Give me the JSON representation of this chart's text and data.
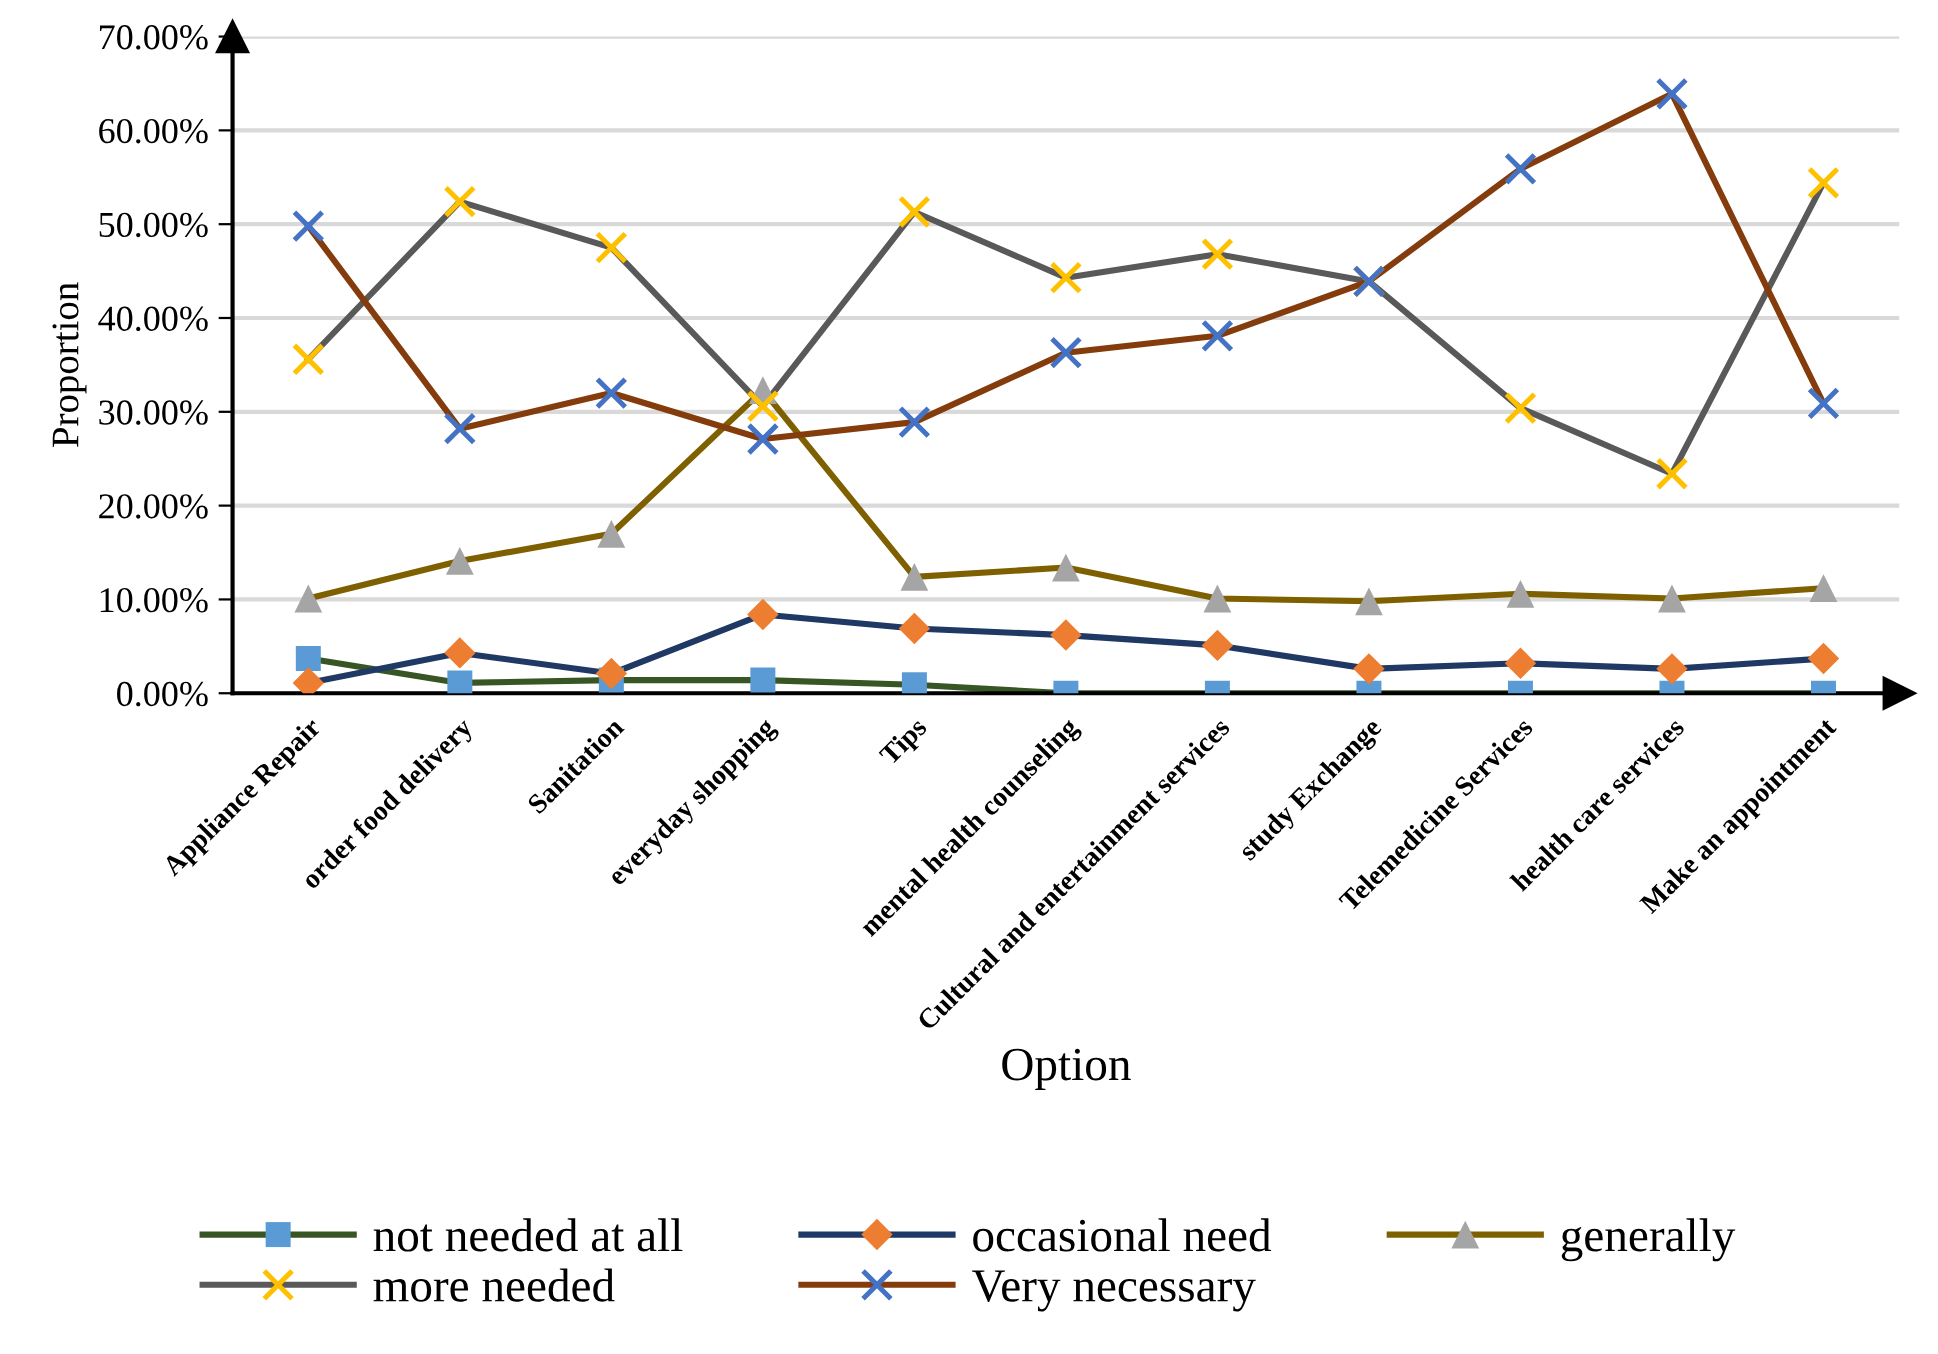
{
  "chart_data": {
    "type": "line",
    "xlabel": "Option",
    "ylabel": "Proportion",
    "categories": [
      "Appliance Repair",
      "order food delivery",
      "Sanitation",
      "everyday shopping",
      "Tips",
      "mental health counseling",
      "Cultural and entertainment services",
      "study Exchange",
      "Telemedicine Services",
      "health care services",
      "Make an appointment"
    ],
    "series": [
      {
        "name": "not needed at all",
        "color": "#375623",
        "marker": "square",
        "colors": [
          "#5b9bd5",
          "#5b9bd5",
          "#5b9bd5",
          "#5b9bd5",
          "#5b9bd5",
          "#5b9bd5",
          "#5b9bd5",
          "#5b9bd5",
          "#5b9bd5",
          "#5b9bd5",
          "#5b9bd5"
        ],
        "values": [
          3.7,
          1.1,
          1.4,
          1.4,
          0.9,
          0,
          0,
          0,
          0,
          0,
          0
        ]
      },
      {
        "name": "occasional need",
        "color": "#1f3864",
        "marker": "diamond",
        "colors": [
          "#ed7d31",
          "#ed7d31",
          "#ed7d31",
          "#ed7d31",
          "#ed7d31",
          "#ed7d31",
          "#ed7d31",
          "#ed7d31",
          "#ed7d31",
          "#ed7d31",
          "#ed7d31"
        ],
        "values": [
          1.1,
          4.3,
          2.1,
          8.4,
          6.9,
          6.2,
          5.1,
          2.6,
          3.2,
          2.6,
          3.7
        ]
      },
      {
        "name": "generally",
        "color": "#7f6000",
        "marker": "triangle",
        "colors": [
          "#a5a5a5",
          "#a5a5a5",
          "#a5a5a5",
          "#a5a5a5",
          "#a5a5a5",
          "#a5a5a5",
          "#a5a5a5",
          "#a5a5a5",
          "#a5a5a5",
          "#a5a5a5",
          "#a5a5a5"
        ],
        "values": [
          10.1,
          14.1,
          17.0,
          32.3,
          12.4,
          13.4,
          10.1,
          9.8,
          10.6,
          10.1,
          11.2
        ]
      },
      {
        "name": "more needed",
        "color": "#595959",
        "marker": "cross",
        "colors": [
          "#ffc000",
          "#ffc000",
          "#ffc000",
          "#ffc000",
          "#ffc000",
          "#ffc000",
          "#ffc000",
          "#ffc000",
          "#ffc000",
          "#ffc000",
          "#ffc000"
        ],
        "values": [
          35.6,
          52.4,
          47.5,
          30.6,
          51.3,
          44.3,
          46.8,
          43.9,
          30.4,
          23.4,
          54.4
        ]
      },
      {
        "name": "Very necessary",
        "color": "#843c0c",
        "marker": "cross",
        "colors": [
          "#4472c4",
          "#4472c4",
          "#4472c4",
          "#4472c4",
          "#4472c4",
          "#4472c4",
          "#4472c4",
          "#4472c4",
          "#4472c4",
          "#4472c4",
          "#4472c4"
        ],
        "values": [
          49.8,
          28.2,
          32.0,
          27.1,
          28.9,
          36.3,
          38.1,
          43.9,
          55.9,
          63.9,
          30.9
        ]
      }
    ],
    "ylim": [
      0,
      70
    ],
    "yticks": [
      {
        "value": 0,
        "label": "0.00%"
      },
      {
        "value": 10,
        "label": "10.00%"
      },
      {
        "value": 20,
        "label": "20.00%"
      },
      {
        "value": 30,
        "label": "30.00%"
      },
      {
        "value": 40,
        "label": "40.00%"
      },
      {
        "value": 50,
        "label": "50.00%"
      },
      {
        "value": 60,
        "label": "60.00%"
      },
      {
        "value": 70,
        "label": "70.00%"
      }
    ],
    "grid": "y",
    "legend": "bottom",
    "line_style": "solid"
  }
}
